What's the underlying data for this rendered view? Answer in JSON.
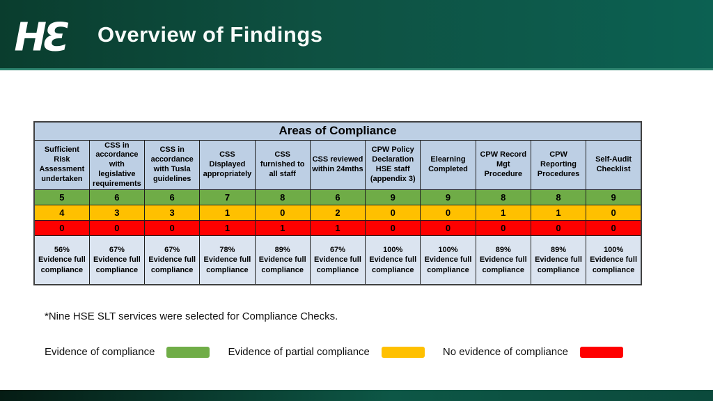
{
  "slide": {
    "title": "Overview of Findings",
    "logo_text": "HƐ"
  },
  "table": {
    "title": "Areas of Compliance",
    "columns": [
      "Sufficient Risk Assessment undertaken",
      "CSS in accordance with legislative requirements",
      "CSS in accordance with Tusla guidelines",
      "CSS Displayed appropriately",
      "CSS furnished to all staff",
      "CSS reviewed within 24mths",
      "CPW Policy Declaration HSE staff (appendix 3)",
      "Elearning Completed",
      "CPW Record Mgt Procedure",
      "CPW Reporting Procedures",
      "Self-Audit Checklist"
    ],
    "rows": {
      "compliance": [
        5,
        6,
        6,
        7,
        8,
        6,
        9,
        9,
        8,
        8,
        9
      ],
      "partial": [
        4,
        3,
        3,
        1,
        0,
        2,
        0,
        0,
        1,
        1,
        0
      ],
      "none": [
        0,
        0,
        0,
        1,
        1,
        1,
        0,
        0,
        0,
        0,
        0
      ]
    },
    "summary": [
      {
        "pct": "56%",
        "label": "Evidence full compliance"
      },
      {
        "pct": "67%",
        "label": "Evidence full compliance"
      },
      {
        "pct": "67%",
        "label": "Evidence full compliance"
      },
      {
        "pct": "78%",
        "label": "Evidence full compliance"
      },
      {
        "pct": "89%",
        "label": "Evidence full compliance"
      },
      {
        "pct": "67%",
        "label": "Evidence full compliance"
      },
      {
        "pct": "100%",
        "label": "Evidence full compliance"
      },
      {
        "pct": "100%",
        "label": "Evidence full compliance"
      },
      {
        "pct": "89%",
        "label": "Evidence full compliance"
      },
      {
        "pct": "89%",
        "label": "Evidence full compliance"
      },
      {
        "pct": "100%",
        "label": "Evidence full compliance"
      }
    ]
  },
  "footnote": "*Nine HSE SLT services were selected for Compliance Checks.",
  "legend": [
    {
      "label": "Evidence of compliance",
      "color": "#70ad47"
    },
    {
      "label": "Evidence of partial compliance",
      "color": "#ffc000"
    },
    {
      "label": "No evidence of compliance",
      "color": "#ff0000"
    }
  ],
  "colors": {
    "compliance_row": "#6fac47",
    "partial_row": "#ffc000",
    "none_row": "#fe0000",
    "header_cell_bg": "#bdcfe4",
    "summary_cell_bg": "#dbe4f0",
    "band_dark_green": "#0a3d2e",
    "band_teal": "#0c6152"
  }
}
